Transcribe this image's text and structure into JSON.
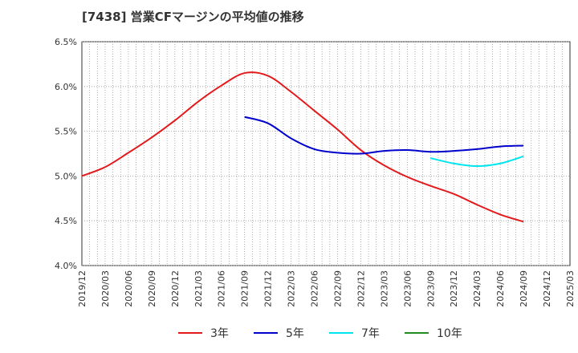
{
  "title": "[7438]  営業CFマージンの平均値の推移",
  "chart_data": {
    "type": "line",
    "ylim": [
      4.0,
      6.5
    ],
    "yticks": [
      "6.5%",
      "6.0%",
      "5.5%",
      "5.0%",
      "4.5%",
      "4.0%"
    ],
    "xticks": [
      "2019/12",
      "2020/03",
      "2020/06",
      "2020/09",
      "2020/12",
      "2021/03",
      "2021/06",
      "2021/09",
      "2021/12",
      "2022/03",
      "2022/06",
      "2022/09",
      "2022/12",
      "2023/03",
      "2023/06",
      "2023/09",
      "2023/12",
      "2024/03",
      "2024/06",
      "2024/09",
      "2024/12",
      "2025/03"
    ],
    "grid": true,
    "legend_position": "bottom",
    "series": [
      {
        "name": "3年",
        "color": "#e31a1c",
        "x": [
          "2019/12",
          "2020/03",
          "2020/06",
          "2020/09",
          "2020/12",
          "2021/03",
          "2021/06",
          "2021/09",
          "2021/12",
          "2022/03",
          "2022/06",
          "2022/09",
          "2022/12",
          "2023/03",
          "2023/06",
          "2023/09",
          "2023/12",
          "2024/03",
          "2024/06",
          "2024/09"
        ],
        "values": [
          5.0,
          5.1,
          5.26,
          5.43,
          5.62,
          5.83,
          6.01,
          6.15,
          6.12,
          5.94,
          5.73,
          5.52,
          5.29,
          5.12,
          4.99,
          4.89,
          4.8,
          4.68,
          4.57,
          4.49
        ]
      },
      {
        "name": "5年",
        "color": "#0000cc",
        "x": [
          "2021/09",
          "2021/12",
          "2022/03",
          "2022/06",
          "2022/09",
          "2022/12",
          "2023/03",
          "2023/06",
          "2023/09",
          "2023/12",
          "2024/03",
          "2024/06",
          "2024/09"
        ],
        "values": [
          5.66,
          5.59,
          5.42,
          5.3,
          5.26,
          5.25,
          5.28,
          5.29,
          5.27,
          5.28,
          5.3,
          5.33,
          5.34
        ]
      },
      {
        "name": "7年",
        "color": "#00e5ee",
        "x": [
          "2023/09",
          "2023/12",
          "2024/03",
          "2024/06",
          "2024/09"
        ],
        "values": [
          5.2,
          5.14,
          5.11,
          5.14,
          5.22
        ]
      },
      {
        "name": "10年",
        "color": "#228b22",
        "x": [],
        "values": []
      }
    ]
  }
}
